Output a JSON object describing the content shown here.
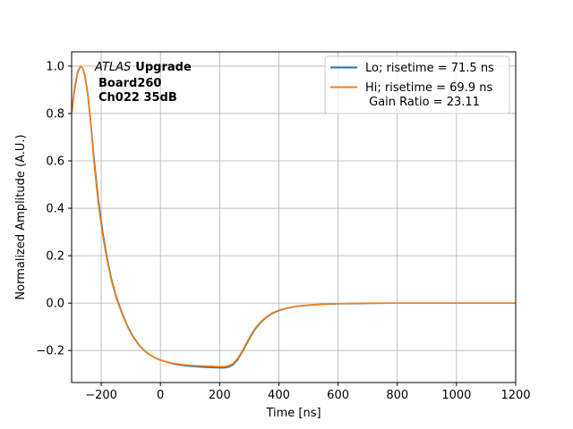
{
  "chart_data": {
    "type": "line",
    "xlabel": "Time [ns]",
    "ylabel": "Normalized Amplitude (A.U.)",
    "xlim": [
      -300,
      1200
    ],
    "ylim": [
      -0.335,
      1.06
    ],
    "grid": true,
    "x_ticks": [
      -200,
      0,
      200,
      400,
      600,
      800,
      1000,
      1200
    ],
    "x_tick_labels": [
      "−200",
      "0",
      "200",
      "400",
      "600",
      "800",
      "1000",
      "1200"
    ],
    "y_ticks": [
      -0.2,
      0.0,
      0.2,
      0.4,
      0.6,
      0.8,
      1.0
    ],
    "y_tick_labels": [
      "−0.2",
      "0.0",
      "0.2",
      "0.4",
      "0.6",
      "0.8",
      "1.0"
    ],
    "legend_position": "top-right",
    "annotation": {
      "atlas": "ATLAS",
      "upgrade": "Upgrade",
      "line2": "Board260",
      "line3": "Ch022 35dB"
    },
    "series": [
      {
        "name": "Lo; risetime = 71.5 ns",
        "color": "#1f77b4",
        "x": [
          -300,
          -290,
          -280,
          -270,
          -262,
          -255,
          -245,
          -235,
          -225,
          -210,
          -195,
          -180,
          -165,
          -150,
          -130,
          -110,
          -90,
          -70,
          -50,
          -30,
          -10,
          0,
          20,
          40,
          60,
          80,
          100,
          120,
          140,
          160,
          180,
          200,
          215,
          230,
          245,
          260,
          275,
          290,
          305,
          320,
          340,
          360,
          380,
          400,
          420,
          450,
          480,
          510,
          550,
          600,
          650,
          700,
          800,
          900,
          1000,
          1100,
          1200
        ],
        "y": [
          0.8,
          0.9,
          0.97,
          1.0,
          0.99,
          0.96,
          0.88,
          0.76,
          0.62,
          0.44,
          0.3,
          0.19,
          0.1,
          0.03,
          -0.04,
          -0.1,
          -0.145,
          -0.18,
          -0.205,
          -0.222,
          -0.235,
          -0.24,
          -0.248,
          -0.255,
          -0.26,
          -0.263,
          -0.266,
          -0.268,
          -0.27,
          -0.271,
          -0.272,
          -0.273,
          -0.273,
          -0.27,
          -0.26,
          -0.24,
          -0.21,
          -0.175,
          -0.14,
          -0.11,
          -0.08,
          -0.058,
          -0.042,
          -0.032,
          -0.024,
          -0.016,
          -0.011,
          -0.008,
          -0.005,
          -0.003,
          -0.002,
          -0.001,
          0.0,
          0.0,
          0.0,
          0.0,
          0.0
        ]
      },
      {
        "name": "Hi; risetime = 69.9 ns",
        "name_line2": " Gain Ratio = 23.11",
        "color": "#ff7f0e",
        "x": [
          -300,
          -290,
          -280,
          -270,
          -262,
          -255,
          -245,
          -235,
          -225,
          -210,
          -195,
          -180,
          -165,
          -150,
          -130,
          -110,
          -90,
          -70,
          -50,
          -30,
          -10,
          0,
          20,
          40,
          60,
          80,
          100,
          120,
          140,
          160,
          180,
          200,
          215,
          230,
          245,
          260,
          275,
          290,
          305,
          320,
          340,
          360,
          380,
          400,
          420,
          450,
          480,
          510,
          550,
          600,
          650,
          700,
          800,
          900,
          1000,
          1100,
          1200
        ],
        "y": [
          0.8,
          0.91,
          0.975,
          1.0,
          0.99,
          0.955,
          0.87,
          0.75,
          0.6,
          0.42,
          0.285,
          0.18,
          0.092,
          0.024,
          -0.045,
          -0.104,
          -0.148,
          -0.182,
          -0.206,
          -0.223,
          -0.236,
          -0.241,
          -0.247,
          -0.253,
          -0.257,
          -0.26,
          -0.262,
          -0.264,
          -0.265,
          -0.266,
          -0.267,
          -0.268,
          -0.268,
          -0.265,
          -0.255,
          -0.235,
          -0.205,
          -0.17,
          -0.135,
          -0.106,
          -0.077,
          -0.056,
          -0.04,
          -0.03,
          -0.023,
          -0.015,
          -0.01,
          -0.007,
          -0.004,
          -0.002,
          -0.001,
          0.0,
          0.0,
          0.0,
          0.0,
          0.0,
          0.0
        ]
      }
    ]
  }
}
